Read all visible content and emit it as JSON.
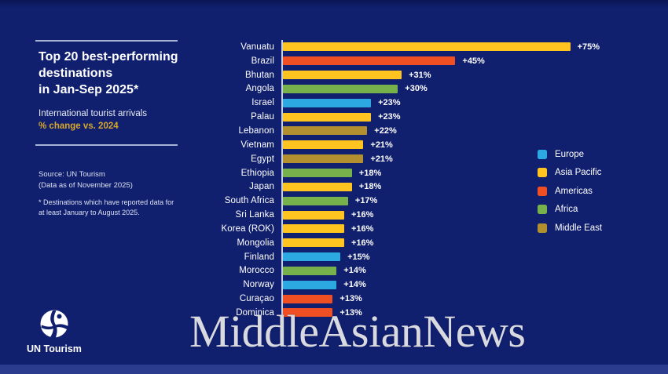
{
  "colors": {
    "background": "#101F6E",
    "bottom_band": "#2B3B8D",
    "divider": "#A8B2D4",
    "axis": "#C7D0E8",
    "text": "#FFFFFF",
    "accent_gold": "#D7A82B",
    "watermark": "#D9DADF",
    "europe": "#2BA9E0",
    "asia_pacific": "#FFC41F",
    "americas": "#F04E23",
    "africa": "#77B14B",
    "middle_east": "#B3902F"
  },
  "panel": {
    "title": "Top 20 best-performing\ndestinations\nin Jan-Sep 2025*",
    "subtitle": "International tourist arrivals",
    "subtitle_highlight": "% change vs. 2024",
    "source": "Source: UN Tourism\n(Data as of November 2025)",
    "footnote": "* Destinations which have reported data for\nat least January to August 2025."
  },
  "logo": {
    "label": "UN Tourism"
  },
  "legend": [
    {
      "label": "Europe",
      "color_key": "europe"
    },
    {
      "label": "Asia Pacific",
      "color_key": "asia_pacific"
    },
    {
      "label": "Americas",
      "color_key": "americas"
    },
    {
      "label": "Africa",
      "color_key": "africa"
    },
    {
      "label": "Middle East",
      "color_key": "middle_east"
    }
  ],
  "watermark": "MiddleAsianNews",
  "chart_data": {
    "type": "bar",
    "orientation": "horizontal",
    "title": "Top 20 best-performing destinations in Jan-Sep 2025",
    "xlabel": "% change vs. 2024",
    "ylabel": "",
    "xlim": [
      0,
      80
    ],
    "grid": false,
    "legend_position": "right",
    "categories": [
      "Vanuatu",
      "Brazil",
      "Bhutan",
      "Angola",
      "Israel",
      "Palau",
      "Lebanon",
      "Vietnam",
      "Egypt",
      "Ethiopia",
      "Japan",
      "South Africa",
      "Sri Lanka",
      "Korea (ROK)",
      "Mongolia",
      "Finland",
      "Morocco",
      "Norway",
      "Curaçao",
      "Dominica"
    ],
    "values": [
      75,
      45,
      31,
      30,
      23,
      23,
      22,
      21,
      21,
      18,
      18,
      17,
      16,
      16,
      16,
      15,
      14,
      14,
      13,
      13
    ],
    "value_labels": [
      "+75%",
      "+45%",
      "+31%",
      "+30%",
      "+23%",
      "+23%",
      "+22%",
      "+21%",
      "+21%",
      "+18%",
      "+18%",
      "+17%",
      "+16%",
      "+16%",
      "+16%",
      "+15%",
      "+14%",
      "+14%",
      "+13%",
      "+13%"
    ],
    "regions": [
      "asia_pacific",
      "americas",
      "asia_pacific",
      "africa",
      "europe",
      "asia_pacific",
      "middle_east",
      "asia_pacific",
      "middle_east",
      "africa",
      "asia_pacific",
      "africa",
      "asia_pacific",
      "asia_pacific",
      "asia_pacific",
      "europe",
      "africa",
      "europe",
      "americas",
      "americas"
    ]
  }
}
